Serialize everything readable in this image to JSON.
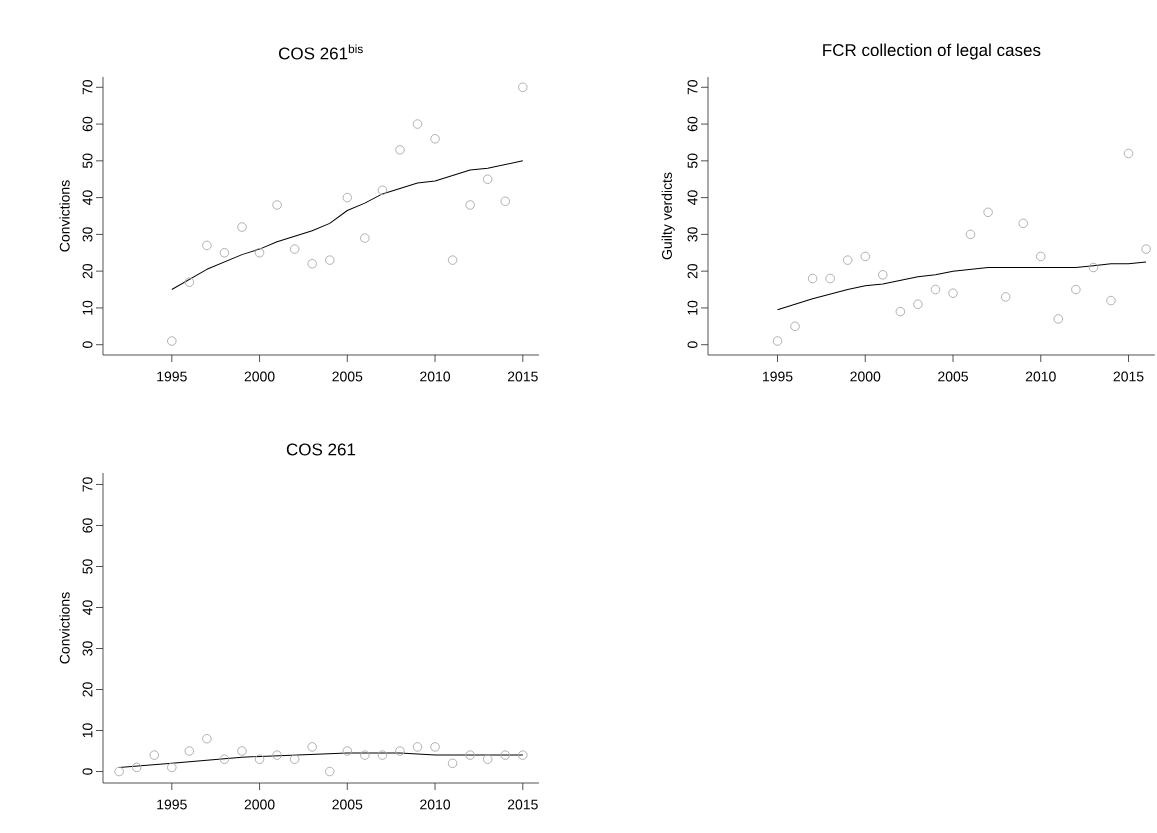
{
  "chart_data": [
    {
      "type": "scatter",
      "title": "COS 261$^{bis}$",
      "ylabel": "Convictions",
      "xlim": [
        1991.08,
        2015.92
      ],
      "ylim": [
        -2.8,
        72.8
      ],
      "xticks": [
        1995,
        2000,
        2005,
        2010,
        2015
      ],
      "yticks": [
        0,
        10,
        20,
        30,
        40,
        50,
        60,
        70
      ],
      "series": [
        {
          "type": "scatter",
          "color": "#a8a8a8",
          "marker": "circle",
          "x": [
            1995,
            1996,
            1997,
            1998,
            1999,
            2000,
            2001,
            2002,
            2003,
            2004,
            2005,
            2006,
            2007,
            2008,
            2009,
            2010,
            2011,
            2012,
            2013,
            2014,
            2015
          ],
          "values": [
            1,
            17,
            27,
            25,
            32,
            25,
            38,
            26,
            22,
            23,
            40,
            29,
            42,
            53,
            60,
            56,
            23,
            38,
            45,
            39,
            70
          ]
        },
        {
          "type": "line",
          "color": "#000000",
          "marker": "none",
          "line_style": "solid",
          "x": [
            1995,
            1997,
            1999,
            2000,
            2001,
            2002,
            2003,
            2004,
            2005,
            2006,
            2007,
            2008,
            2009,
            2010,
            2011,
            2012,
            2013,
            2014,
            2015
          ],
          "values": [
            15,
            20.5,
            24.5,
            26,
            28,
            29.5,
            31,
            33,
            36.5,
            38.5,
            41,
            42.5,
            44,
            44.5,
            46,
            47.5,
            48,
            49,
            50
          ]
        }
      ]
    },
    {
      "type": "scatter",
      "title": "FCR collection of legal cases",
      "ylabel": "Guilty verdicts",
      "xlim": [
        1991.04,
        2016.5
      ],
      "ylim": [
        -2.8,
        72.8
      ],
      "xticks": [
        1995,
        2000,
        2005,
        2010,
        2015
      ],
      "yticks": [
        0,
        10,
        20,
        30,
        40,
        50,
        60,
        70
      ],
      "series": [
        {
          "type": "scatter",
          "color": "#a8a8a8",
          "marker": "circle",
          "x": [
            1995,
            1996,
            1997,
            1998,
            1999,
            2000,
            2001,
            2002,
            2003,
            2004,
            2005,
            2006,
            2007,
            2008,
            2009,
            2010,
            2011,
            2012,
            2013,
            2014,
            2015,
            2016
          ],
          "values": [
            1,
            5,
            18,
            18,
            23,
            24,
            19,
            9,
            11,
            15,
            14,
            30,
            36,
            13,
            33,
            24,
            7,
            15,
            21,
            12,
            52,
            26
          ]
        },
        {
          "type": "line",
          "color": "#000000",
          "marker": "none",
          "line_style": "solid",
          "x": [
            1995,
            1997,
            1999,
            2000,
            2001,
            2002,
            2003,
            2004,
            2005,
            2006,
            2007,
            2008,
            2009,
            2010,
            2011,
            2012,
            2013,
            2014,
            2015,
            2016
          ],
          "values": [
            9.5,
            12.5,
            15,
            16,
            16.5,
            17.5,
            18.5,
            19,
            20,
            20.5,
            21,
            21,
            21,
            21,
            21,
            21,
            21.5,
            22,
            22,
            22.5
          ]
        }
      ]
    },
    {
      "type": "scatter",
      "title": "COS 261",
      "ylabel": "Convictions",
      "xlim": [
        1991.08,
        2015.92
      ],
      "ylim": [
        -2.8,
        72.8
      ],
      "xticks": [
        1995,
        2000,
        2005,
        2010,
        2015
      ],
      "yticks": [
        0,
        10,
        20,
        30,
        40,
        50,
        60,
        70
      ],
      "series": [
        {
          "type": "scatter",
          "color": "#a8a8a8",
          "marker": "circle",
          "x": [
            1992,
            1993,
            1994,
            1995,
            1996,
            1997,
            1998,
            1999,
            2000,
            2001,
            2002,
            2003,
            2004,
            2005,
            2006,
            2007,
            2008,
            2009,
            2010,
            2011,
            2012,
            2013,
            2014,
            2015
          ],
          "values": [
            0,
            1,
            4,
            1,
            5,
            8,
            3,
            5,
            3,
            4,
            3,
            6,
            0,
            5,
            4,
            4,
            5,
            6,
            6,
            2,
            4,
            3,
            4,
            4
          ]
        },
        {
          "type": "line",
          "color": "#000000",
          "marker": "none",
          "line_style": "solid",
          "x": [
            1992,
            1995,
            1999,
            2002,
            2005,
            2008,
            2010,
            2012,
            2015
          ],
          "values": [
            1,
            2,
            3.5,
            4,
            4.5,
            4.5,
            4,
            4,
            4
          ]
        }
      ]
    }
  ]
}
